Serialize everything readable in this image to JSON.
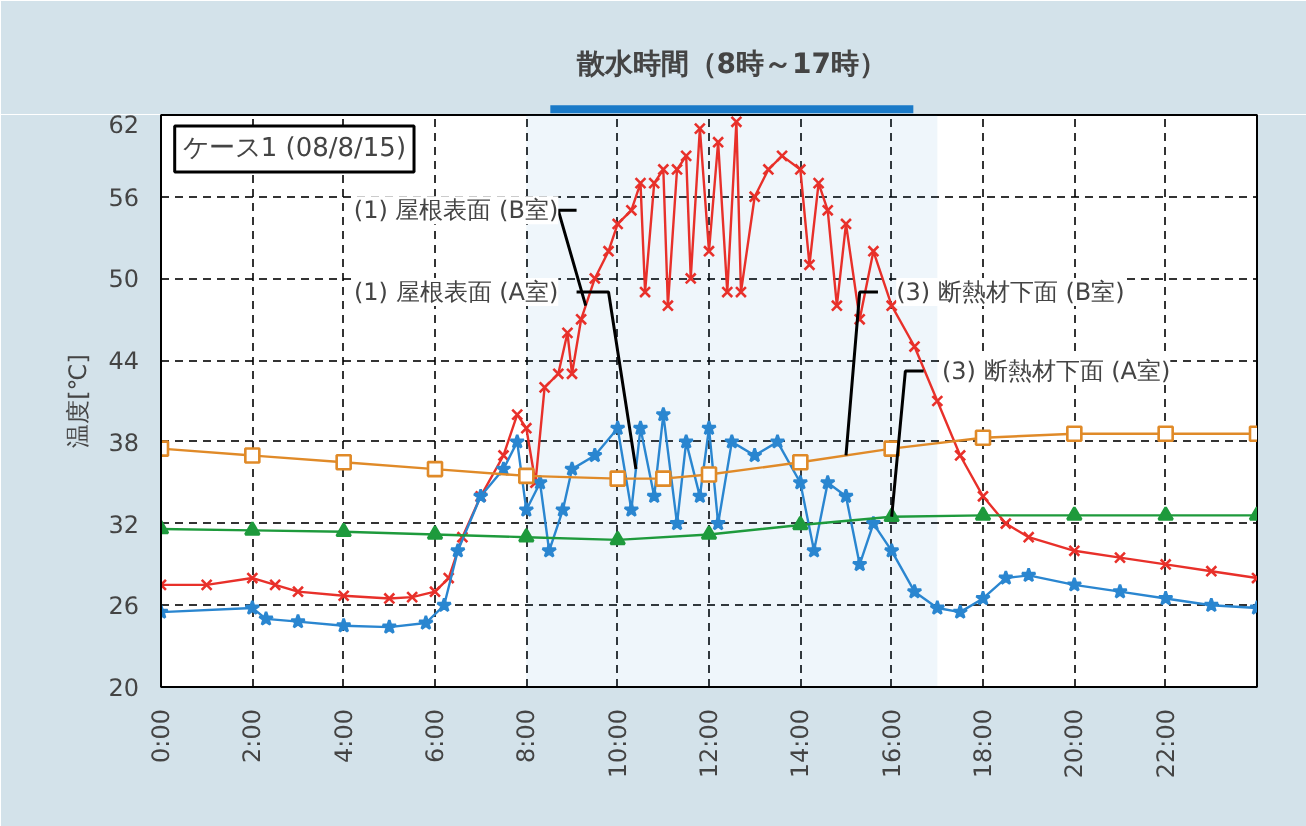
{
  "chart_data": {
    "type": "line",
    "ylabel": "温度[℃]",
    "annotations": [
      "ケース1 (08/8/15)"
    ],
    "bands": [
      {
        "axis": "x",
        "from": 8,
        "to": 17,
        "label": "散水時間（8時～17時）"
      }
    ],
    "xlim": [
      0,
      24
    ],
    "xticks": [
      {
        "value": 0,
        "label": "0:00"
      },
      {
        "value": 2,
        "label": "2:00"
      },
      {
        "value": 4,
        "label": "4:00"
      },
      {
        "value": 6,
        "label": "6:00"
      },
      {
        "value": 8,
        "label": "8:00"
      },
      {
        "value": 10,
        "label": "10:00"
      },
      {
        "value": 12,
        "label": "12:00"
      },
      {
        "value": 14,
        "label": "14:00"
      },
      {
        "value": 16,
        "label": "16:00"
      },
      {
        "value": 18,
        "label": "18:00"
      },
      {
        "value": 20,
        "label": "20:00"
      },
      {
        "value": 22,
        "label": "22:00"
      }
    ],
    "ylim": [
      20,
      62
    ],
    "yticks": [
      20,
      26,
      32,
      38,
      44,
      50,
      56,
      62
    ],
    "grid": true,
    "legend": false,
    "series": [
      {
        "name": "(1) 屋根表面 (B室)",
        "color": "#e8302a",
        "marker": "cross",
        "x": [
          0,
          1,
          2,
          2.5,
          3,
          4,
          5,
          5.5,
          6,
          6.3,
          6.6,
          7,
          7.5,
          7.8,
          8,
          8.2,
          8.4,
          8.7,
          8.9,
          9,
          9.2,
          9.5,
          9.8,
          10,
          10.3,
          10.5,
          10.6,
          10.8,
          11,
          11.1,
          11.3,
          11.5,
          11.6,
          11.8,
          12,
          12.2,
          12.4,
          12.6,
          12.7,
          13,
          13.3,
          13.6,
          14,
          14.2,
          14.4,
          14.6,
          14.8,
          15,
          15.3,
          15.6,
          16,
          16.5,
          17,
          17.5,
          18,
          18.5,
          19,
          20,
          21,
          22,
          23,
          24
        ],
        "values": [
          27.5,
          27.5,
          28,
          27.5,
          27,
          26.7,
          26.5,
          26.6,
          27,
          28,
          31,
          34,
          37,
          40,
          39,
          35,
          42,
          43,
          46,
          43,
          47,
          50,
          52,
          54,
          55,
          57,
          49,
          57,
          58,
          48,
          58,
          59,
          50,
          61,
          52,
          60,
          49,
          61.5,
          49,
          56,
          58,
          59,
          58,
          51,
          57,
          55,
          48,
          54,
          47,
          52,
          48,
          45,
          41,
          37,
          34,
          32,
          31,
          30,
          29.5,
          29,
          28.5,
          28
        ]
      },
      {
        "name": "(1) 屋根表面 (A室)",
        "color": "#2a86d0",
        "marker": "star",
        "x": [
          0,
          2,
          2.3,
          3,
          4,
          5,
          5.8,
          6.2,
          6.5,
          7,
          7.5,
          7.8,
          8,
          8.3,
          8.5,
          8.8,
          9,
          9.5,
          10,
          10.3,
          10.5,
          10.8,
          11,
          11.3,
          11.5,
          11.8,
          12,
          12.2,
          12.5,
          13,
          13.5,
          14,
          14.3,
          14.6,
          15,
          15.3,
          15.6,
          16,
          16.5,
          17,
          17.5,
          18,
          18.5,
          19,
          20,
          21,
          22,
          23,
          24
        ],
        "values": [
          25.5,
          25.8,
          25,
          24.8,
          24.5,
          24.4,
          24.7,
          26,
          30,
          34,
          36,
          38,
          33,
          35,
          30,
          33,
          36,
          37,
          39,
          33,
          39,
          34,
          40,
          32,
          38,
          34,
          39,
          32,
          38,
          37,
          38,
          35,
          30,
          35,
          34,
          29,
          32,
          30,
          27,
          25.8,
          25.5,
          26.5,
          28,
          28.2,
          27.5,
          27,
          26.5,
          26,
          25.8
        ]
      },
      {
        "name": "(3) 断熱材下面 (B室)",
        "color": "#e08a28",
        "marker": "square",
        "x": [
          0,
          2,
          4,
          6,
          8,
          10,
          11,
          12,
          14,
          16,
          18,
          20,
          22,
          24
        ],
        "values": [
          37.5,
          37,
          36.5,
          36,
          35.5,
          35.3,
          35.3,
          35.6,
          36.5,
          37.5,
          38.3,
          38.6,
          38.6,
          38.6
        ]
      },
      {
        "name": "(3) 断熱材下面 (A室)",
        "color": "#1e9a3c",
        "marker": "triangle",
        "x": [
          0,
          2,
          4,
          6,
          8,
          10,
          12,
          14,
          16,
          18,
          20,
          22,
          24
        ],
        "values": [
          31.6,
          31.5,
          31.4,
          31.2,
          31,
          30.8,
          31.2,
          31.9,
          32.5,
          32.6,
          32.6,
          32.6,
          32.6
        ]
      }
    ]
  }
}
